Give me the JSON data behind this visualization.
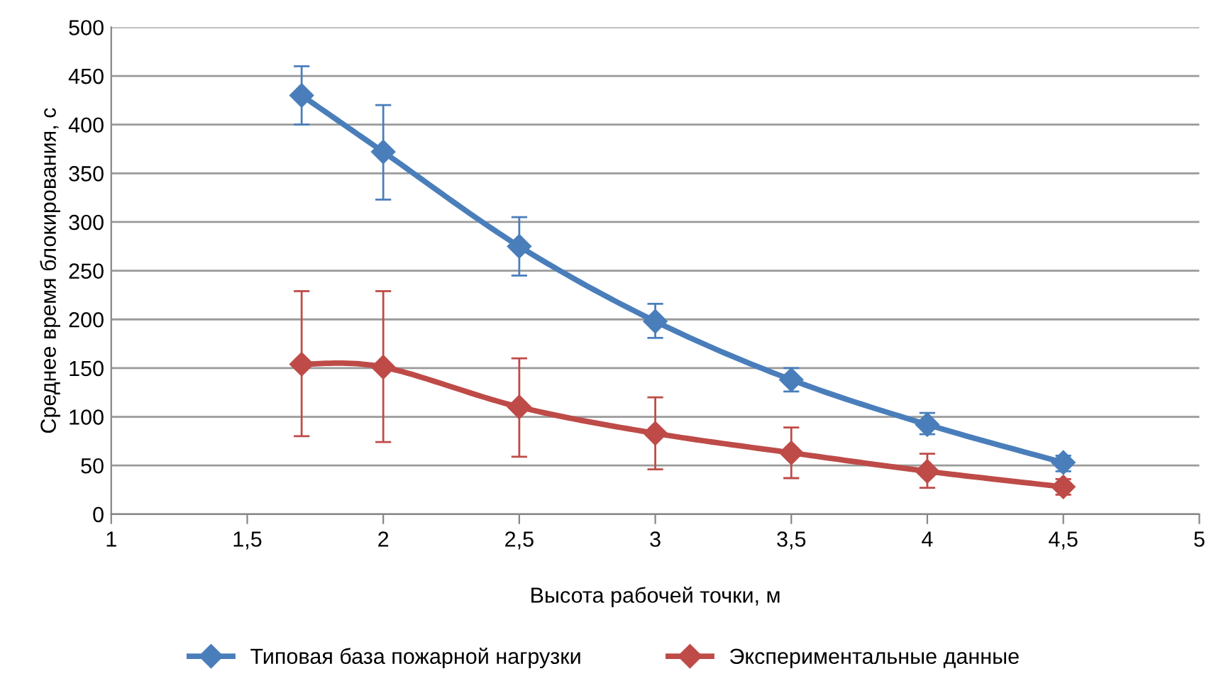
{
  "chart_data": {
    "type": "line",
    "xlabel": "Высота рабочей точки, м",
    "ylabel": "Среднее время блокирования, с",
    "x": [
      1.7,
      2,
      2.5,
      3,
      3.5,
      4,
      4.5
    ],
    "series": [
      {
        "name": "Типовая база пожарной нагрузки",
        "color": "#4a7ebb",
        "values": [
          430,
          372,
          275,
          198,
          138,
          92,
          53
        ],
        "errors": [
          [
            400,
            460
          ],
          [
            323,
            420
          ],
          [
            245,
            305
          ],
          [
            181,
            216
          ],
          [
            126,
            150
          ],
          [
            82,
            104
          ],
          [
            44,
            60
          ]
        ]
      },
      {
        "name": "Экспериментальные данные",
        "color": "#be4b48",
        "values": [
          154,
          151,
          110,
          83,
          63,
          44,
          28
        ],
        "errors": [
          [
            80,
            229
          ],
          [
            74,
            229
          ],
          [
            59,
            160
          ],
          [
            46,
            120
          ],
          [
            37,
            89
          ],
          [
            27,
            62
          ],
          [
            20,
            36
          ]
        ]
      }
    ],
    "xlim": [
      1,
      5
    ],
    "xticks": [
      1,
      {
        "value": 1.5,
        "label": "1,5"
      },
      2,
      {
        "value": 2.5,
        "label": "2,5"
      },
      3,
      {
        "value": 3.5,
        "label": "3,5"
      },
      4,
      {
        "value": 4.5,
        "label": "4,5"
      },
      5
    ],
    "ylim": [
      0,
      500
    ],
    "yticks": [
      0,
      50,
      100,
      150,
      200,
      250,
      300,
      350,
      400,
      450,
      500
    ],
    "grid": "y",
    "legend": "bottom",
    "marker": "diamond",
    "line_style": "solid"
  }
}
